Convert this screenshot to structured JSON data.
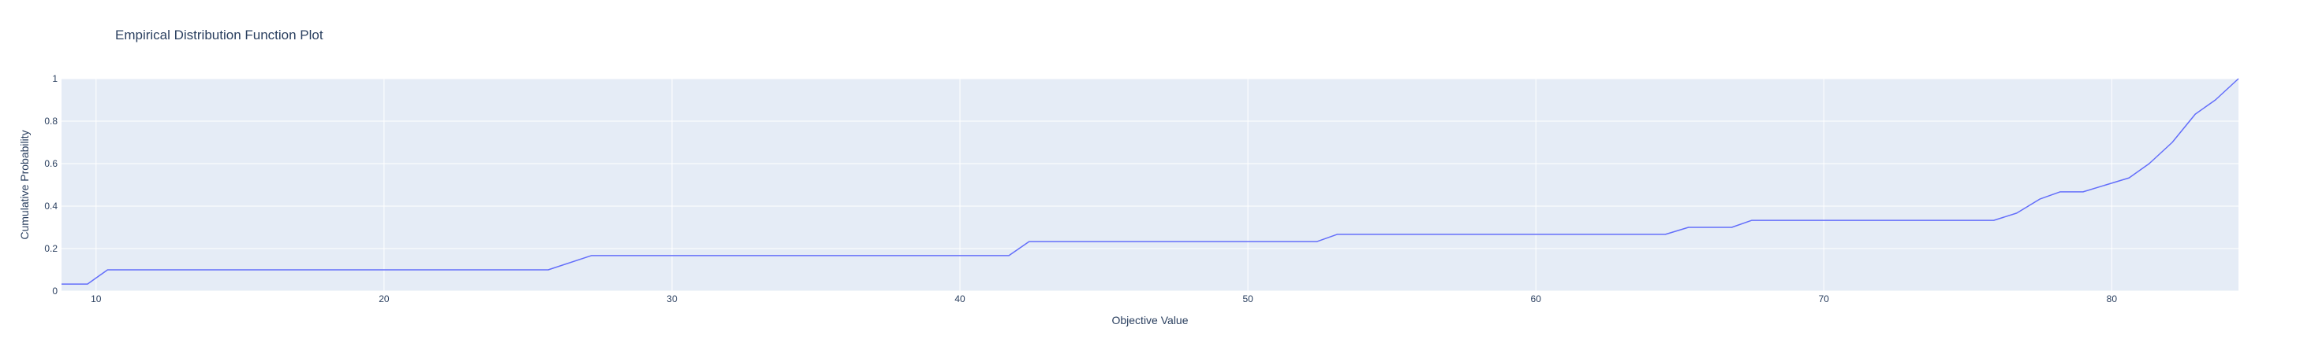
{
  "chart_data": {
    "type": "line",
    "title": "Empirical Distribution Function Plot",
    "xlabel": "Objective Value",
    "ylabel": "Cumulative Probability",
    "xlim": [
      8.8,
      84.4
    ],
    "ylim": [
      0,
      1
    ],
    "xticks": [
      10,
      20,
      30,
      40,
      50,
      60,
      70,
      80
    ],
    "yticks": [
      0,
      0.2,
      0.4,
      0.6,
      0.8,
      1
    ],
    "ytick_labels": [
      "0",
      "0.2",
      "0.4",
      "0.6",
      "0.8",
      "1"
    ],
    "grid": true,
    "colors": {
      "line": "#636efa",
      "plot_bg": "#e5ecf6",
      "grid": "#ffffff",
      "text": "#2a3f5f"
    },
    "series": [
      {
        "x": [
          8.8,
          9.7,
          10.4,
          25.7,
          27.2,
          41.7,
          42.4,
          52.4,
          53.1,
          64.5,
          65.3,
          66.8,
          67.5,
          75.9,
          76.7,
          77.5,
          78.2,
          79.0,
          79.8,
          80.6,
          81.3,
          82.1,
          82.9,
          83.6,
          84.4
        ],
        "y": [
          0.033,
          0.033,
          0.1,
          0.1,
          0.167,
          0.167,
          0.233,
          0.233,
          0.267,
          0.267,
          0.3,
          0.3,
          0.333,
          0.333,
          0.367,
          0.433,
          0.467,
          0.467,
          0.5,
          0.533,
          0.6,
          0.7,
          0.833,
          0.9,
          1.0
        ]
      }
    ]
  }
}
